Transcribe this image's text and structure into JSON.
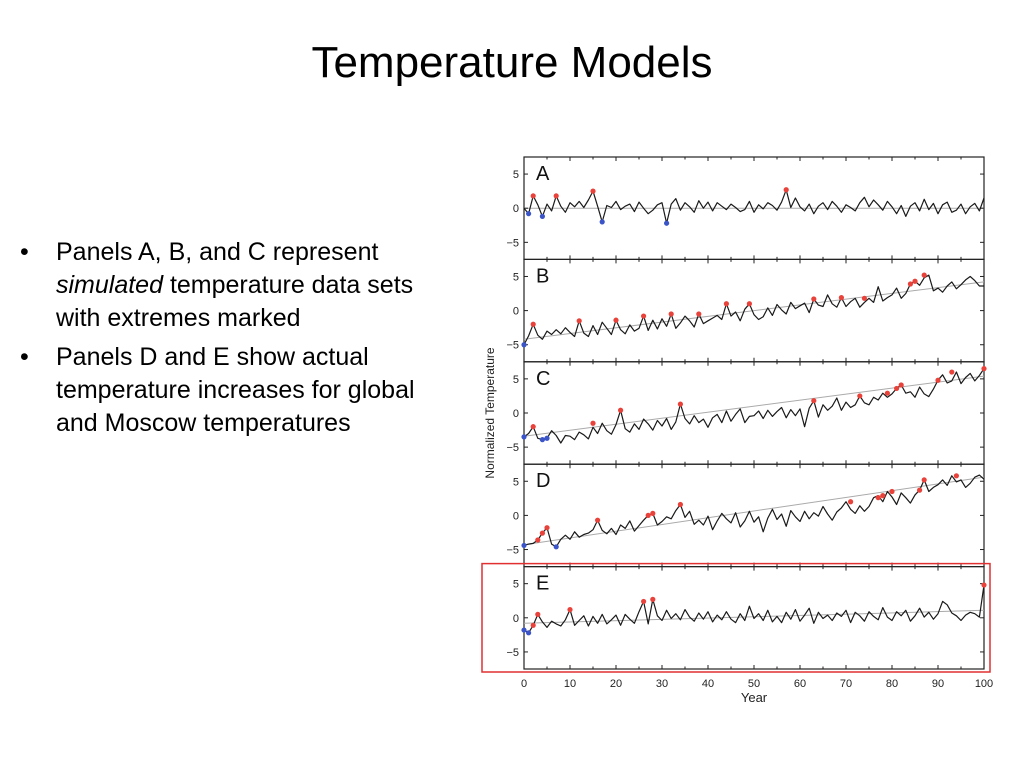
{
  "slide": {
    "title": "Temperature Models",
    "bullets": [
      {
        "pre": "Panels A, B, and C represent ",
        "em": "simulated",
        "post": " temperature data sets with extremes marked"
      },
      {
        "pre": "Panels D and E show actual temperature increases for global and Moscow temperatures",
        "em": "",
        "post": ""
      }
    ],
    "bullet_glyph": "•"
  },
  "colors": {
    "line": "#1a1a1a",
    "trend": "#aaaaaa",
    "record_high": "#e8423a",
    "record_low": "#3b55c8",
    "highlight_box": "#e03030"
  },
  "chart_data": [
    {
      "type": "line",
      "panel": "A",
      "xlim": [
        0,
        100
      ],
      "ylim": [
        -7.5,
        7.5
      ],
      "yticks": [
        5,
        0,
        -5
      ],
      "ytick_labels": [
        "5",
        "0",
        "−5"
      ],
      "trend": [
        0,
        0
      ],
      "x": [
        0,
        1,
        2,
        3,
        4,
        5,
        6,
        7,
        8,
        9,
        10,
        11,
        12,
        13,
        14,
        15,
        16,
        17,
        18,
        19,
        20,
        21,
        22,
        23,
        24,
        25,
        26,
        27,
        28,
        29,
        30,
        31,
        32,
        33,
        34,
        35,
        36,
        37,
        38,
        39,
        40,
        41,
        42,
        43,
        44,
        45,
        46,
        47,
        48,
        49,
        50,
        51,
        52,
        53,
        54,
        55,
        56,
        57,
        58,
        59,
        60,
        61,
        62,
        63,
        64,
        65,
        66,
        67,
        68,
        69,
        70,
        71,
        72,
        73,
        74,
        75,
        76,
        77,
        78,
        79,
        80,
        81,
        82,
        83,
        84,
        85,
        86,
        87,
        88,
        89,
        90,
        91,
        92,
        93,
        94,
        95,
        96,
        97,
        98,
        99,
        100
      ],
      "y": [
        0,
        -0.8,
        1.8,
        0.5,
        -1.2,
        0.6,
        -0.4,
        1.8,
        0.3,
        -0.6,
        0.8,
        0.2,
        1,
        0.1,
        1.2,
        2.5,
        0.3,
        -2,
        0.4,
        0.1,
        1,
        -0.2,
        0.3,
        0.6,
        -0.5,
        0.9,
        0,
        -0.8,
        -0.3,
        0.5,
        0.8,
        -2.2,
        0.6,
        1.4,
        -0.3,
        0.8,
        0.2,
        -0.6,
        1.1,
        0,
        0.9,
        -0.4,
        0.8,
        0.3,
        -0.2,
        0.6,
        0.1,
        -0.5,
        -0.2,
        1,
        -0.6,
        0.5,
        -0.1,
        0.8,
        0.4,
        -0.3,
        0.9,
        2.7,
        0.1,
        1.5,
        0.2,
        -0.4,
        0.6,
        -0.8,
        0.3,
        0.8,
        -0.2,
        1,
        0.3,
        -0.6,
        0.5,
        0.1,
        -0.4,
        0.8,
        1.6,
        0.2,
        1.2,
        0.5,
        -0.3,
        1,
        0.2,
        -0.8,
        0.4,
        -1.2,
        0.3,
        0.8,
        -0.4,
        1.3,
        -0.2,
        0.7,
        -0.8,
        0.5,
        0.9,
        -0.6,
        -0.3,
        0.6,
        -0.8,
        0.2,
        0.7,
        -0.4,
        1.5
      ],
      "record_highs": [
        [
          2,
          1.8
        ],
        [
          7,
          1.8
        ],
        [
          15,
          2.5
        ],
        [
          57,
          2.7
        ]
      ],
      "record_lows": [
        [
          1,
          -0.8
        ],
        [
          4,
          -1.2
        ],
        [
          17,
          -2
        ],
        [
          31,
          -2.2
        ]
      ]
    },
    {
      "type": "line",
      "panel": "B",
      "xlim": [
        0,
        100
      ],
      "ylim": [
        -7.5,
        7.5
      ],
      "yticks": [
        5,
        0,
        -5
      ],
      "ytick_labels": [
        "5",
        "0",
        "−5"
      ],
      "trend": [
        -4.2,
        4.2
      ],
      "x": [
        0,
        1,
        2,
        3,
        4,
        5,
        6,
        7,
        8,
        9,
        10,
        11,
        12,
        13,
        14,
        15,
        16,
        17,
        18,
        19,
        20,
        21,
        22,
        23,
        24,
        25,
        26,
        27,
        28,
        29,
        30,
        31,
        32,
        33,
        34,
        35,
        36,
        37,
        38,
        39,
        40,
        41,
        42,
        43,
        44,
        45,
        46,
        47,
        48,
        49,
        50,
        51,
        52,
        53,
        54,
        55,
        56,
        57,
        58,
        59,
        60,
        61,
        62,
        63,
        64,
        65,
        66,
        67,
        68,
        69,
        70,
        71,
        72,
        73,
        74,
        75,
        76,
        77,
        78,
        79,
        80,
        81,
        82,
        83,
        84,
        85,
        86,
        87,
        88,
        89,
        90,
        91,
        92,
        93,
        94,
        95,
        96,
        97,
        98,
        99,
        100
      ],
      "y": [
        -5,
        -3.7,
        -2,
        -3.6,
        -4.2,
        -3,
        -3.5,
        -2.8,
        -3.4,
        -2.5,
        -3.2,
        -3.8,
        -1.5,
        -3.3,
        -3.8,
        -2.2,
        -3.5,
        -1.7,
        -2.6,
        -3.5,
        -1.4,
        -2.8,
        -3.4,
        -2.1,
        -3,
        -2.6,
        -0.8,
        -2.9,
        -1.4,
        -2.7,
        -1.2,
        -2.3,
        -0.5,
        -2.6,
        -1.8,
        -0.8,
        -1.5,
        -2.4,
        -0.5,
        -1.9,
        -1.5,
        -1.1,
        -0.7,
        -1.3,
        1,
        -0.8,
        -0.2,
        -1.5,
        0.2,
        1,
        -0.6,
        -1.3,
        -0.9,
        0.4,
        -0.7,
        0.9,
        0.1,
        -0.5,
        1.2,
        0.3,
        0.7,
        1.1,
        -0.3,
        1.7,
        0.8,
        0.6,
        2.3,
        1,
        0.5,
        1.9,
        0.6,
        1.3,
        1.8,
        0.5,
        1.2,
        1.8,
        1.2,
        3.5,
        1.4,
        1.9,
        2.3,
        3.3,
        1.8,
        2.5,
        3.9,
        4.3,
        3.7,
        4.8,
        5.2,
        2.9,
        3.3,
        2.7,
        3.6,
        4.2,
        3.2,
        3.8,
        4.5,
        5,
        4.4,
        3.6,
        3.6
      ],
      "record_highs": [
        [
          2,
          -2
        ],
        [
          12,
          -1.5
        ],
        [
          20,
          -1.4
        ],
        [
          26,
          -0.8
        ],
        [
          32,
          -0.5
        ],
        [
          38,
          -0.5
        ],
        [
          44,
          1
        ],
        [
          49,
          1
        ],
        [
          63,
          1.7
        ],
        [
          69,
          1.9
        ],
        [
          74,
          1.8
        ],
        [
          84,
          3.9
        ],
        [
          85,
          4.3
        ],
        [
          87,
          5.2
        ]
      ],
      "record_lows": [
        [
          0,
          -5
        ]
      ]
    },
    {
      "type": "line",
      "panel": "C",
      "xlim": [
        0,
        100
      ],
      "ylim": [
        -7.5,
        7.5
      ],
      "yticks": [
        5,
        0,
        -5
      ],
      "ytick_labels": [
        "5",
        "0",
        "−5"
      ],
      "trend": [
        -3.4,
        5.4
      ],
      "x": [
        0,
        1,
        2,
        3,
        4,
        5,
        6,
        7,
        8,
        9,
        10,
        11,
        12,
        13,
        14,
        15,
        16,
        17,
        18,
        19,
        20,
        21,
        22,
        23,
        24,
        25,
        26,
        27,
        28,
        29,
        30,
        31,
        32,
        33,
        34,
        35,
        36,
        37,
        38,
        39,
        40,
        41,
        42,
        43,
        44,
        45,
        46,
        47,
        48,
        49,
        50,
        51,
        52,
        53,
        54,
        55,
        56,
        57,
        58,
        59,
        60,
        61,
        62,
        63,
        64,
        65,
        66,
        67,
        68,
        69,
        70,
        71,
        72,
        73,
        74,
        75,
        76,
        77,
        78,
        79,
        80,
        81,
        82,
        83,
        84,
        85,
        86,
        87,
        88,
        89,
        90,
        91,
        92,
        93,
        94,
        95,
        96,
        97,
        98,
        99,
        100
      ],
      "y": [
        -3.5,
        -3,
        -2,
        -3.7,
        -3.9,
        -3.7,
        -2.6,
        -3.3,
        -4.4,
        -3.3,
        -3.4,
        -3.9,
        -2.8,
        -3.2,
        -3.8,
        -2.1,
        -3,
        -1.5,
        -2.6,
        -3.1,
        -1.7,
        0.4,
        -2.3,
        -2.8,
        -1.6,
        -2.4,
        -0.9,
        -1.6,
        -2.5,
        -1.1,
        -1.9,
        -0.8,
        -2.4,
        -1.3,
        1.3,
        -0.8,
        -1.6,
        -0.4,
        -1.4,
        -0.9,
        -2.1,
        -0.7,
        -0.2,
        -1.4,
        0.3,
        -1.2,
        -0.2,
        0.6,
        -1.4,
        -0.5,
        -0.4,
        0.3,
        -0.8,
        0.4,
        -0.5,
        0.2,
        0.8,
        -0.7,
        0.5,
        -0.4,
        0.6,
        -2,
        0.7,
        1.8,
        -0.6,
        1.2,
        0.4,
        1,
        2.2,
        0.4,
        1.6,
        0.8,
        1.2,
        2.5,
        1.5,
        1.2,
        2.3,
        1.9,
        2.9,
        2.3,
        2.8,
        3.6,
        4.1,
        2.9,
        3.1,
        2.3,
        3.8,
        2.8,
        2.4,
        3.5,
        4.8,
        5.6,
        4.4,
        4.7,
        6,
        4.3,
        5.2,
        5.8,
        4.7,
        5.5,
        6.5
      ],
      "record_highs": [
        [
          2,
          -2
        ],
        [
          15,
          -1.5
        ],
        [
          21,
          0.4
        ],
        [
          34,
          1.3
        ],
        [
          63,
          1.8
        ],
        [
          73,
          2.5
        ],
        [
          79,
          2.9
        ],
        [
          81,
          3.6
        ],
        [
          82,
          4.1
        ],
        [
          90,
          4.8
        ],
        [
          93,
          6
        ],
        [
          100,
          6.5
        ]
      ],
      "record_lows": [
        [
          0,
          -3.5
        ],
        [
          4,
          -3.9
        ],
        [
          5,
          -3.7
        ]
      ]
    },
    {
      "type": "line",
      "panel": "D",
      "xlim": [
        0,
        100
      ],
      "ylim": [
        -7.5,
        7.5
      ],
      "yticks": [
        5,
        0,
        -5
      ],
      "ytick_labels": [
        "5",
        "0",
        "−5"
      ],
      "trend": [
        -4.3,
        5.6
      ],
      "x": [
        0,
        1,
        2,
        3,
        4,
        5,
        6,
        7,
        8,
        9,
        10,
        11,
        12,
        13,
        14,
        15,
        16,
        17,
        18,
        19,
        20,
        21,
        22,
        23,
        24,
        25,
        26,
        27,
        28,
        29,
        30,
        31,
        32,
        33,
        34,
        35,
        36,
        37,
        38,
        39,
        40,
        41,
        42,
        43,
        44,
        45,
        46,
        47,
        48,
        49,
        50,
        51,
        52,
        53,
        54,
        55,
        56,
        57,
        58,
        59,
        60,
        61,
        62,
        63,
        64,
        65,
        66,
        67,
        68,
        69,
        70,
        71,
        72,
        73,
        74,
        75,
        76,
        77,
        78,
        79,
        80,
        81,
        82,
        83,
        84,
        85,
        86,
        87,
        88,
        89,
        90,
        91,
        92,
        93,
        94,
        95,
        96,
        97,
        98,
        99,
        100
      ],
      "y": [
        -4.4,
        -4.2,
        -4.1,
        -3.6,
        -2.6,
        -1.8,
        -4.2,
        -4.6,
        -3.5,
        -2.9,
        -3.5,
        -2.4,
        -3.2,
        -2.8,
        -2.6,
        -2.1,
        -0.7,
        -2.2,
        -2.7,
        -1.9,
        -2.8,
        -1.4,
        -1.9,
        -0.8,
        -2.3,
        -1.5,
        -0.7,
        0,
        0.3,
        -1.4,
        -0.9,
        -0.2,
        -0.5,
        0.7,
        1.6,
        -0.3,
        0.6,
        -1.3,
        -0.7,
        -1.4,
        -0.1,
        -2.1,
        -0.8,
        0.3,
        -0.5,
        -1.1,
        0.4,
        -1.7,
        -0.8,
        0.6,
        -1,
        -0.2,
        -2.4,
        -0.4,
        0.9,
        -0.6,
        0.2,
        -1.6,
        0.7,
        -0.2,
        -0.9,
        0.6,
        -0.5,
        0.4,
        -0.1,
        1.3,
        0.2,
        -0.7,
        0.5,
        1.1,
        2,
        0.9,
        0.3,
        1.4,
        0.6,
        1.3,
        2.6,
        2.9,
        2,
        3.5,
        2.7,
        1.6,
        3.3,
        2.6,
        1.8,
        3,
        3.7,
        5.2,
        3.5,
        4.1,
        4.5,
        5.2,
        4.4,
        5.8,
        4.9,
        5.2,
        4.1,
        4.7,
        5.6,
        5.9,
        5.3
      ],
      "record_highs": [
        [
          3,
          -3.6
        ],
        [
          4,
          -2.6
        ],
        [
          5,
          -1.8
        ],
        [
          16,
          -0.7
        ],
        [
          27,
          0
        ],
        [
          28,
          0.3
        ],
        [
          34,
          1.6
        ],
        [
          71,
          2
        ],
        [
          77,
          2.6
        ],
        [
          78,
          2.9
        ],
        [
          80,
          3.5
        ],
        [
          86,
          3.7
        ],
        [
          87,
          5.2
        ],
        [
          94,
          5.8
        ]
      ],
      "record_lows": [
        [
          0,
          -4.4
        ],
        [
          7,
          -4.6
        ]
      ]
    },
    {
      "type": "line",
      "panel": "E",
      "xlim": [
        0,
        100
      ],
      "xticks": [
        0,
        10,
        20,
        30,
        40,
        50,
        60,
        70,
        80,
        90,
        100
      ],
      "ylim": [
        -7.5,
        7.5
      ],
      "yticks": [
        5,
        0,
        -5
      ],
      "ytick_labels": [
        "5",
        "0",
        "−5"
      ],
      "trend": [
        -0.8,
        1.1
      ],
      "xlabel": "Year",
      "x": [
        0,
        1,
        2,
        3,
        4,
        5,
        6,
        7,
        8,
        9,
        10,
        11,
        12,
        13,
        14,
        15,
        16,
        17,
        18,
        19,
        20,
        21,
        22,
        23,
        24,
        25,
        26,
        27,
        28,
        29,
        30,
        31,
        32,
        33,
        34,
        35,
        36,
        37,
        38,
        39,
        40,
        41,
        42,
        43,
        44,
        45,
        46,
        47,
        48,
        49,
        50,
        51,
        52,
        53,
        54,
        55,
        56,
        57,
        58,
        59,
        60,
        61,
        62,
        63,
        64,
        65,
        66,
        67,
        68,
        69,
        70,
        71,
        72,
        73,
        74,
        75,
        76,
        77,
        78,
        79,
        80,
        81,
        82,
        83,
        84,
        85,
        86,
        87,
        88,
        89,
        90,
        91,
        92,
        93,
        94,
        95,
        96,
        97,
        98,
        99,
        100
      ],
      "y": [
        -1.8,
        -2.2,
        -1.1,
        0.5,
        -0.6,
        -1.4,
        -0.5,
        -0.9,
        -1.2,
        -0.3,
        1.2,
        -1.1,
        -0.4,
        0.3,
        -1.2,
        0.2,
        -0.8,
        0.5,
        -0.9,
        -0.3,
        0.4,
        -1.1,
        0.5,
        -0.2,
        -0.8,
        0.9,
        2.4,
        -0.9,
        2.7,
        0.3,
        -0.4,
        1.1,
        -0.1,
        0.6,
        -0.3,
        1.2,
        0.1,
        -0.5,
        0.7,
        -0.2,
        0.9,
        -0.6,
        0.4,
        -0.3,
        0.9,
        -0.2,
        -0.7,
        0.6,
        -0.4,
        1.7,
        -0.1,
        0.6,
        -0.4,
        1.1,
        -0.6,
        0.2,
        -0.7,
        0.8,
        -0.2,
        1.2,
        -0.5,
        0.4,
        1.4,
        -0.8,
        0.8,
        -0.1,
        0.4,
        -0.4,
        0.7,
        0.2,
        1.1,
        -0.7,
        0.8,
        0.3,
        -0.5,
        0.9,
        0.2,
        -0.3,
        1.5,
        0.1,
        -0.4,
        0.9,
        0.3,
        1.1,
        -0.5,
        0.3,
        1.4,
        0.1,
        0.8,
        -0.2,
        0.6,
        2.4,
        1.9,
        0.7,
        0.3,
        -0.4,
        0.4,
        0.8,
        0.6,
        0.1,
        4.8
      ],
      "record_highs": [
        [
          2,
          -1.1
        ],
        [
          3,
          0.5
        ],
        [
          10,
          1.2
        ],
        [
          26,
          2.4
        ],
        [
          28,
          2.7
        ],
        [
          100,
          4.8
        ]
      ],
      "record_lows": [
        [
          0,
          -1.8
        ],
        [
          1,
          -2.2
        ]
      ]
    }
  ],
  "figure": {
    "ylabel": "Normalized Temperature",
    "highlight_panel": "E"
  }
}
